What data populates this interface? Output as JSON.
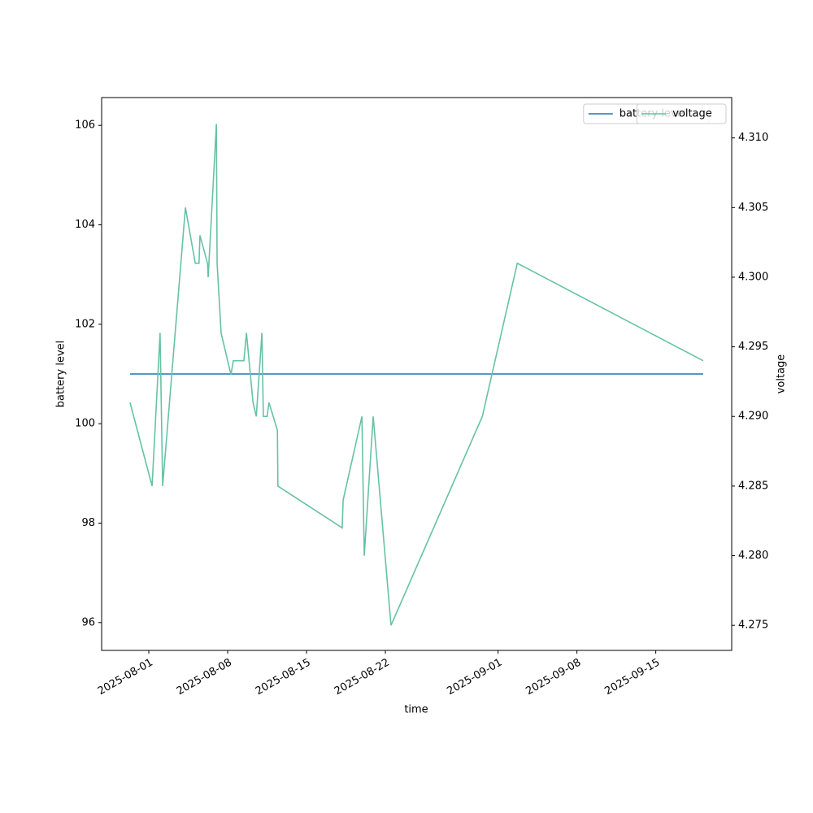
{
  "chart_data": {
    "type": "line",
    "x_label": "time",
    "y_label": "battery level",
    "y2_label": "voltage",
    "x": [
      "2025-07-30T08:00",
      "2025-08-01T07:00",
      "2025-08-02T00:00",
      "2025-08-02T05:30",
      "2025-08-04T06:00",
      "2025-08-05T03:00",
      "2025-08-05T11:00",
      "2025-08-05T13:00",
      "2025-08-06T05:00",
      "2025-08-06T06:30",
      "2025-08-07T00:00",
      "2025-08-07T01:30",
      "2025-08-07T10:00",
      "2025-08-08T07:00",
      "2025-08-08T12:00",
      "2025-08-09T10:30",
      "2025-08-09T16:00",
      "2025-08-10T06:00",
      "2025-08-10T13:00",
      "2025-08-11T01:00",
      "2025-08-11T04:00",
      "2025-08-11T12:00",
      "2025-08-11T16:00",
      "2025-08-12T10:00",
      "2025-08-12T11:00",
      "2025-08-18T04:00",
      "2025-08-18T06:00",
      "2025-08-19T22:00",
      "2025-08-20T03:00",
      "2025-08-20T22:00",
      "2025-08-22T12:00",
      "2025-08-30T14:30",
      "2025-09-02T17:00",
      "2025-09-19T05:00"
    ],
    "series": [
      {
        "name": "battery level",
        "color": "#1f77b4",
        "values": [
          101,
          101,
          101,
          101,
          101,
          101,
          101,
          101,
          101,
          101,
          101,
          101,
          101,
          101,
          101,
          101,
          101,
          101,
          101,
          101,
          101,
          101,
          101,
          101,
          101,
          101,
          101,
          101,
          101,
          101,
          101,
          101,
          101,
          101
        ]
      },
      {
        "name": "voltage",
        "color": "#66c2a5",
        "axis": "y2",
        "values": [
          4.291,
          4.285,
          4.296,
          4.285,
          4.305,
          4.301,
          4.301,
          4.303,
          4.301,
          4.3,
          4.311,
          4.301,
          4.296,
          4.293,
          4.294,
          4.294,
          4.296,
          4.291,
          4.29,
          4.296,
          4.29,
          4.29,
          4.291,
          4.289,
          4.285,
          4.282,
          4.284,
          4.29,
          4.28,
          4.29,
          4.275,
          4.29,
          4.301,
          4.294
        ]
      }
    ],
    "xlim": [
      "2025-07-27T19:30",
      "2025-09-21T17:45"
    ],
    "xticks": [
      "2025-08-01",
      "2025-08-08",
      "2025-08-15",
      "2025-08-22",
      "2025-09-01",
      "2025-09-08",
      "2025-09-15"
    ],
    "ylim": [
      95.44,
      106.56
    ],
    "yticks": [
      96,
      98,
      100,
      102,
      104,
      106
    ],
    "y2lim": [
      4.2732,
      4.3129
    ],
    "y2ticks": [
      4.275,
      {
        "value": 4.28,
        "label": "4.280"
      },
      4.285,
      {
        "value": 4.29,
        "label": "4.290"
      },
      4.295,
      {
        "value": 4.3,
        "label": "4.300"
      },
      4.305,
      {
        "value": 4.31,
        "label": "4.310"
      }
    ],
    "legend": "upper right"
  }
}
